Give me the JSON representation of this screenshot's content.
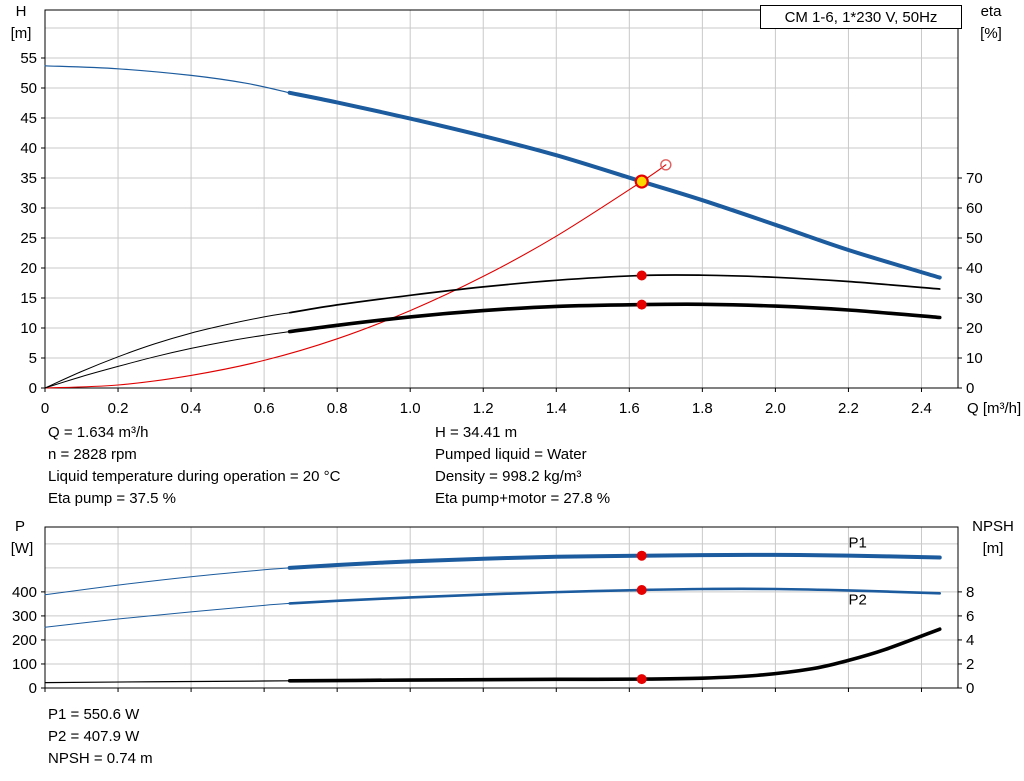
{
  "colors": {
    "blue": "#1b5b9e",
    "red": "#e00000",
    "black": "#000000",
    "marker_red": "#e60000",
    "duty_fill": "#ffd700",
    "duty_ring": "#e60000",
    "open_circle": "#e06060",
    "grid": "#c9c9c9",
    "frame": "#000000"
  },
  "readouts": {
    "top_left": [
      "Q = 1.634 m³/h",
      "n = 2828 rpm",
      "Liquid temperature during operation = 20 °C",
      "Eta pump = 37.5 %"
    ],
    "top_right": [
      "H = 34.41 m",
      "Pumped liquid = Water",
      "Density = 998.2 kg/m³",
      "Eta pump+motor = 27.8 %"
    ],
    "bottom": [
      "P1 = 550.6 W",
      "P2 = 407.9 W",
      "NPSH = 0.74 m"
    ]
  },
  "chart_data": [
    {
      "type": "line",
      "id": "hq-eta",
      "title": "CM 1-6, 1*230 V, 50Hz",
      "x_axis": {
        "label": "Q [m³/h]",
        "min": 0,
        "max": 2.5,
        "ticks": [
          0,
          0.2,
          0.4,
          0.6,
          0.8,
          1,
          1.2,
          1.4,
          1.6,
          1.8,
          2,
          2.2,
          2.4
        ]
      },
      "y_left": {
        "label_lines": [
          "H",
          "[m]"
        ],
        "min": 0,
        "max": 63,
        "ticks": [
          0,
          5,
          10,
          15,
          20,
          25,
          30,
          35,
          40,
          45,
          50,
          55
        ],
        "grid_step": 5,
        "grid_max": 60
      },
      "y_right": {
        "label_lines": [
          "eta",
          "[%]"
        ],
        "ticks": [
          0,
          10,
          20,
          30,
          40,
          50,
          60,
          70
        ],
        "left_per_right": 0.5
      },
      "series": [
        {
          "name": "pump-curve-lead",
          "axis": "left",
          "color": "blue",
          "width": 1.2,
          "points": [
            [
              0,
              53.7
            ],
            [
              0.2,
              53.2
            ],
            [
              0.4,
              52.1
            ],
            [
              0.55,
              50.8
            ],
            [
              0.67,
              49.2
            ]
          ]
        },
        {
          "name": "pump-curve",
          "axis": "left",
          "color": "blue",
          "width": 4,
          "points": [
            [
              0.67,
              49.2
            ],
            [
              0.8,
              47.6
            ],
            [
              1,
              44.9
            ],
            [
              1.2,
              42
            ],
            [
              1.4,
              38.8
            ],
            [
              1.634,
              34.41
            ],
            [
              1.8,
              31.3
            ],
            [
              2,
              27.2
            ],
            [
              2.2,
              23
            ],
            [
              2.45,
              18.4
            ]
          ]
        },
        {
          "name": "system-curve",
          "axis": "left",
          "color": "red",
          "width": 1.1,
          "points": [
            [
              0,
              0
            ],
            [
              0.2,
              0.5
            ],
            [
              0.4,
              2.1
            ],
            [
              0.6,
              4.6
            ],
            [
              0.8,
              8.2
            ],
            [
              1,
              12.9
            ],
            [
              1.2,
              18.6
            ],
            [
              1.4,
              25.3
            ],
            [
              1.634,
              34.41
            ],
            [
              1.7,
              37.2
            ]
          ]
        },
        {
          "name": "eta-pump-lead",
          "axis": "right",
          "color": "black",
          "width": 1,
          "points": [
            [
              0,
              0
            ],
            [
              0.1,
              5.5
            ],
            [
              0.2,
              10.4
            ],
            [
              0.3,
              14.7
            ],
            [
              0.4,
              18.3
            ],
            [
              0.5,
              21.2
            ],
            [
              0.6,
              23.7
            ],
            [
              0.67,
              25.1
            ]
          ]
        },
        {
          "name": "eta-pump-curve",
          "axis": "right",
          "color": "black",
          "width": 1.7,
          "points": [
            [
              0.67,
              25.1
            ],
            [
              0.8,
              27.7
            ],
            [
              1,
              30.9
            ],
            [
              1.2,
              33.7
            ],
            [
              1.4,
              35.9
            ],
            [
              1.634,
              37.5
            ],
            [
              1.8,
              37.6
            ],
            [
              2,
              36.9
            ],
            [
              2.2,
              35.5
            ],
            [
              2.45,
              33
            ]
          ]
        },
        {
          "name": "eta-pump-motor-lead",
          "axis": "right",
          "color": "black",
          "width": 1,
          "points": [
            [
              0,
              0
            ],
            [
              0.1,
              3.8
            ],
            [
              0.2,
              7.2
            ],
            [
              0.3,
              10.4
            ],
            [
              0.4,
              13.2
            ],
            [
              0.5,
              15.6
            ],
            [
              0.6,
              17.6
            ],
            [
              0.67,
              18.8
            ]
          ]
        },
        {
          "name": "eta-pump-motor-curve",
          "axis": "right",
          "color": "black",
          "width": 3.6,
          "points": [
            [
              0.67,
              18.8
            ],
            [
              0.8,
              20.9
            ],
            [
              1,
              23.7
            ],
            [
              1.2,
              25.8
            ],
            [
              1.4,
              27.2
            ],
            [
              1.634,
              27.8
            ],
            [
              1.8,
              27.9
            ],
            [
              2,
              27.3
            ],
            [
              2.2,
              26
            ],
            [
              2.45,
              23.5
            ]
          ]
        }
      ],
      "markers": [
        {
          "name": "eta-pump-point",
          "axis": "right",
          "x": 1.634,
          "y": 37.5,
          "style": "red-dot"
        },
        {
          "name": "eta-pump-motor-point",
          "axis": "right",
          "x": 1.634,
          "y": 27.8,
          "style": "red-dot"
        },
        {
          "name": "rated-point",
          "axis": "left",
          "x": 1.7,
          "y": 37.2,
          "style": "open-red"
        },
        {
          "name": "duty-point",
          "axis": "left",
          "x": 1.634,
          "y": 34.41,
          "style": "duty"
        }
      ],
      "labels": []
    },
    {
      "type": "line",
      "id": "power-npsh",
      "x_axis": {
        "label": "",
        "min": 0,
        "max": 2.5,
        "ticks": [
          0,
          0.2,
          0.4,
          0.6,
          0.8,
          1,
          1.2,
          1.4,
          1.6,
          1.8,
          2,
          2.2,
          2.4
        ]
      },
      "y_left": {
        "label_lines": [
          "P",
          "[W]"
        ],
        "min": 0,
        "max": 670,
        "ticks": [
          0,
          100,
          200,
          300,
          400
        ],
        "grid_step": 100,
        "grid_max": 600
      },
      "y_right": {
        "label_lines": [
          "NPSH",
          "[m]"
        ],
        "ticks": [
          0,
          2,
          4,
          6,
          8
        ],
        "left_per_right": 50
      },
      "series": [
        {
          "name": "p1-lead",
          "axis": "left",
          "color": "blue",
          "width": 1,
          "points": [
            [
              0,
              388
            ],
            [
              0.2,
              428
            ],
            [
              0.4,
              463
            ],
            [
              0.6,
              492
            ],
            [
              0.67,
              500
            ]
          ]
        },
        {
          "name": "p1-curve",
          "axis": "left",
          "color": "blue",
          "width": 4,
          "points": [
            [
              0.67,
              500
            ],
            [
              0.8,
              512
            ],
            [
              1,
              527
            ],
            [
              1.2,
              538
            ],
            [
              1.4,
              546
            ],
            [
              1.634,
              550.6
            ],
            [
              1.8,
              553
            ],
            [
              2,
              554
            ],
            [
              2.2,
              551
            ],
            [
              2.45,
              543
            ]
          ]
        },
        {
          "name": "p2-lead",
          "axis": "left",
          "color": "blue",
          "width": 1,
          "points": [
            [
              0,
              253
            ],
            [
              0.2,
              287
            ],
            [
              0.4,
              317
            ],
            [
              0.6,
              344
            ],
            [
              0.67,
              352
            ]
          ]
        },
        {
          "name": "p2-curve",
          "axis": "left",
          "color": "blue",
          "width": 2.6,
          "points": [
            [
              0.67,
              352
            ],
            [
              0.8,
              363
            ],
            [
              1,
              377
            ],
            [
              1.2,
              389
            ],
            [
              1.4,
              399
            ],
            [
              1.634,
              407.9
            ],
            [
              1.8,
              412
            ],
            [
              2,
              412
            ],
            [
              2.2,
              406
            ],
            [
              2.45,
              394
            ]
          ]
        },
        {
          "name": "npsh-lead",
          "axis": "right",
          "color": "black",
          "width": 1.2,
          "points": [
            [
              0,
              0.45
            ],
            [
              0.3,
              0.52
            ],
            [
              0.6,
              0.58
            ],
            [
              0.67,
              0.6
            ]
          ]
        },
        {
          "name": "npsh-curve",
          "axis": "right",
          "color": "black",
          "width": 3.6,
          "points": [
            [
              0.67,
              0.6
            ],
            [
              1,
              0.66
            ],
            [
              1.2,
              0.69
            ],
            [
              1.4,
              0.72
            ],
            [
              1.634,
              0.74
            ],
            [
              1.8,
              0.82
            ],
            [
              1.95,
              1.05
            ],
            [
              2.1,
              1.6
            ],
            [
              2.2,
              2.3
            ],
            [
              2.3,
              3.2
            ],
            [
              2.45,
              4.9
            ]
          ]
        }
      ],
      "markers": [
        {
          "name": "p1-point",
          "axis": "left",
          "x": 1.634,
          "y": 550.6,
          "style": "red-dot"
        },
        {
          "name": "p2-point",
          "axis": "left",
          "x": 1.634,
          "y": 407.9,
          "style": "red-dot"
        },
        {
          "name": "npsh-point",
          "axis": "right",
          "x": 1.634,
          "y": 0.74,
          "style": "red-dot"
        }
      ],
      "labels": [
        {
          "name": "p1-label",
          "text": "P1",
          "axis": "left",
          "x": 2.2,
          "y": 585,
          "color": "blue"
        },
        {
          "name": "p2-label",
          "text": "P2",
          "axis": "left",
          "x": 2.2,
          "y": 348,
          "color": "blue"
        }
      ]
    }
  ]
}
